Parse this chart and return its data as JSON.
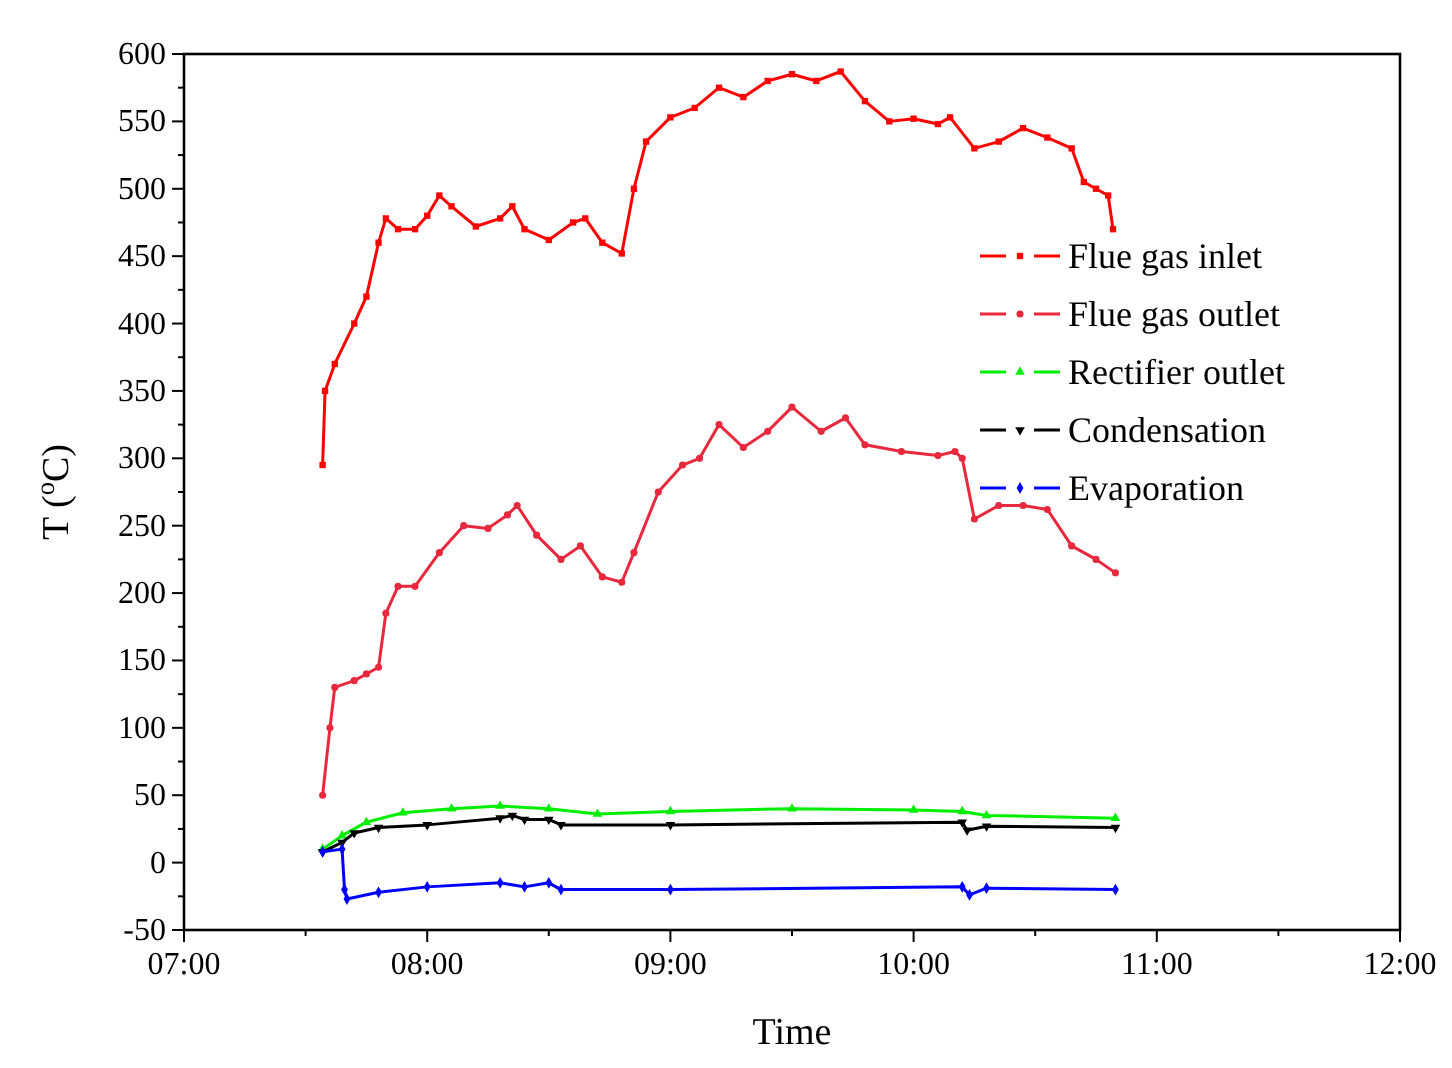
{
  "chart_data": {
    "type": "line",
    "xlabel": "Time",
    "ylabel": "T ($^{o}$C)",
    "xlim": [
      7,
      12
    ],
    "xticks": [
      {
        "value": 7,
        "label": "07:00"
      },
      {
        "value": 8,
        "label": "08:00"
      },
      {
        "value": 9,
        "label": "09:00"
      },
      {
        "value": 10,
        "label": "10:00"
      },
      {
        "value": 11,
        "label": "11:00"
      },
      {
        "value": 12,
        "label": "12:00"
      }
    ],
    "ylim": [
      -50,
      600
    ],
    "yticks": [
      -50,
      0,
      50,
      100,
      150,
      200,
      250,
      300,
      350,
      400,
      450,
      500,
      550,
      600
    ],
    "legend": "top right",
    "grid": false,
    "series": [
      {
        "name": "Flue gas inlet",
        "color": "#ff0000",
        "marker": "square",
        "x": [
          7.57,
          7.58,
          7.62,
          7.7,
          7.75,
          7.8,
          7.83,
          7.88,
          7.95,
          8.0,
          8.05,
          8.1,
          8.2,
          8.3,
          8.35,
          8.4,
          8.5,
          8.6,
          8.65,
          8.72,
          8.8,
          8.85,
          8.9,
          9.0,
          9.1,
          9.2,
          9.3,
          9.4,
          9.5,
          9.6,
          9.7,
          9.8,
          9.9,
          10.0,
          10.1,
          10.15,
          10.25,
          10.35,
          10.45,
          10.55,
          10.65,
          10.7,
          10.75,
          10.8,
          10.82
        ],
        "values": [
          295,
          350,
          370,
          400,
          420,
          460,
          478,
          470,
          470,
          480,
          495,
          487,
          472,
          478,
          487,
          470,
          462,
          475,
          478,
          460,
          452,
          500,
          535,
          553,
          560,
          575,
          568,
          580,
          585,
          580,
          587,
          565,
          550,
          552,
          548,
          553,
          530,
          535,
          545,
          538,
          530,
          505,
          500,
          495,
          470
        ]
      },
      {
        "name": "Flue gas outlet",
        "color": "#e8283c",
        "marker": "circle",
        "x": [
          7.57,
          7.6,
          7.62,
          7.7,
          7.75,
          7.8,
          7.83,
          7.88,
          7.95,
          8.05,
          8.15,
          8.25,
          8.33,
          8.37,
          8.45,
          8.55,
          8.63,
          8.72,
          8.8,
          8.85,
          8.95,
          9.05,
          9.12,
          9.2,
          9.3,
          9.4,
          9.5,
          9.62,
          9.72,
          9.8,
          9.95,
          10.1,
          10.17,
          10.2,
          10.25,
          10.35,
          10.45,
          10.55,
          10.65,
          10.75,
          10.83
        ],
        "values": [
          50,
          100,
          130,
          135,
          140,
          145,
          185,
          205,
          205,
          230,
          250,
          248,
          258,
          265,
          243,
          225,
          235,
          212,
          208,
          230,
          275,
          295,
          300,
          325,
          308,
          320,
          338,
          320,
          330,
          310,
          305,
          302,
          305,
          300,
          255,
          265,
          265,
          262,
          235,
          225,
          215
        ]
      },
      {
        "name": "Rectifier outlet",
        "color": "#00ee00",
        "marker": "triangle",
        "x": [
          7.57,
          7.65,
          7.75,
          7.9,
          8.1,
          8.3,
          8.5,
          8.7,
          9.0,
          9.5,
          10.0,
          10.2,
          10.3,
          10.83
        ],
        "values": [
          10,
          20,
          30,
          37,
          40,
          42,
          40,
          36,
          38,
          40,
          39,
          38,
          35,
          33
        ]
      },
      {
        "name": "Condensation",
        "color": "#000000",
        "marker": "triangle-down",
        "x": [
          7.57,
          7.65,
          7.7,
          7.8,
          8.0,
          8.3,
          8.35,
          8.4,
          8.5,
          8.55,
          9.0,
          10.2,
          10.22,
          10.3,
          10.83
        ],
        "values": [
          8,
          15,
          22,
          26,
          28,
          33,
          35,
          32,
          32,
          28,
          28,
          30,
          24,
          27,
          26
        ]
      },
      {
        "name": "Evaporation",
        "color": "#0000ff",
        "marker": "diamond",
        "x": [
          7.57,
          7.65,
          7.66,
          7.67,
          7.8,
          8.0,
          8.3,
          8.4,
          8.5,
          8.55,
          9.0,
          10.2,
          10.23,
          10.3,
          10.83
        ],
        "values": [
          8,
          10,
          -20,
          -27,
          -22,
          -18,
          -15,
          -18,
          -15,
          -20,
          -20,
          -18,
          -24,
          -19,
          -20
        ]
      }
    ]
  }
}
